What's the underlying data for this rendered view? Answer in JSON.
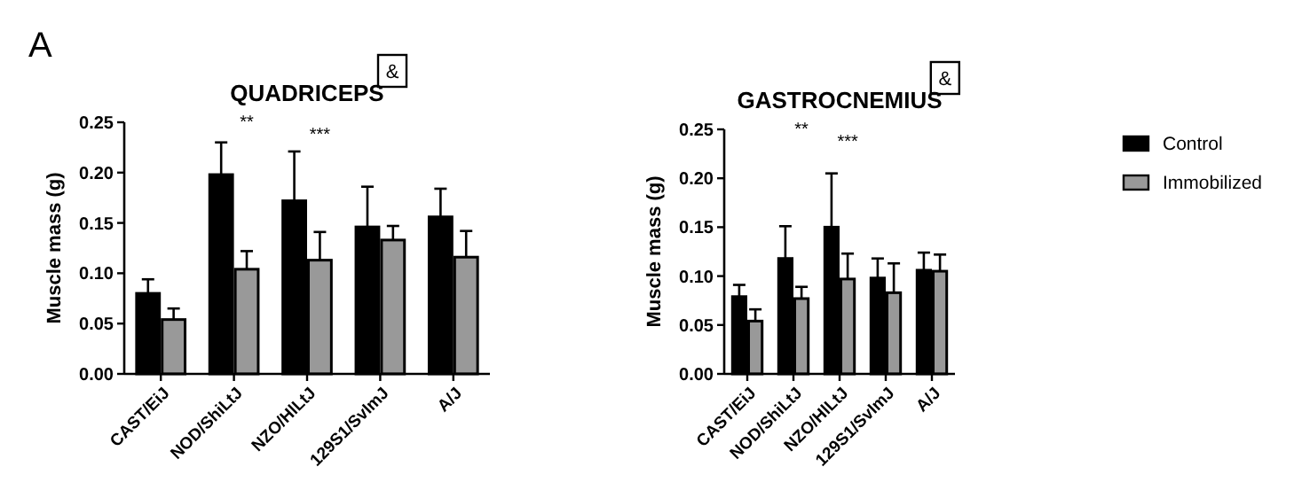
{
  "chart_data": [
    {
      "type": "bar",
      "title": "QUADRICEPS",
      "ylabel": "Muscle mass (g)",
      "categories": [
        "CAST/EiJ",
        "NOD/ShiLtJ",
        "NZO/HlLtJ",
        "129S1/SvImJ",
        "A/J"
      ],
      "series": [
        {
          "color": "#000000",
          "values": [
            0.08,
            0.198,
            0.172,
            0.146,
            0.156
          ],
          "errors": [
            [
              0.08,
              0.094
            ],
            [
              0.198,
              0.23
            ],
            [
              0.172,
              0.221
            ],
            [
              0.146,
              0.186
            ],
            [
              0.156,
              0.184
            ]
          ]
        },
        {
          "color": "#999999",
          "values": [
            0.054,
            0.104,
            0.113,
            0.133,
            0.116
          ],
          "errors": [
            [
              0.054,
              0.065
            ],
            [
              0.104,
              0.122
            ],
            [
              0.113,
              0.141
            ],
            [
              0.133,
              0.147
            ],
            [
              0.116,
              0.142
            ]
          ]
        }
      ],
      "ylim": [
        0,
        0.25
      ],
      "yticks": [
        {
          "value": 0,
          "label": "0.00"
        },
        0.05,
        {
          "value": 0.1,
          "label": "0.10"
        },
        0.15,
        {
          "value": 0.2,
          "label": "0.20"
        },
        0.25
      ],
      "grid": false,
      "annotations": [
        "A",
        "**",
        "***",
        "&"
      ]
    },
    {
      "type": "bar",
      "title": "GASTROCNEMIUS",
      "ylabel": "Muscle mass (g)",
      "categories": [
        "CAST/EiJ",
        "NOD/ShiLtJ",
        "NZO/HlLtJ",
        "129S1/SvImJ",
        "A/J"
      ],
      "series": [
        {
          "name": "Control",
          "color": "#000000",
          "values": [
            0.079,
            0.118,
            0.15,
            0.098,
            0.106
          ],
          "errors": [
            [
              0.079,
              0.091
            ],
            [
              0.118,
              0.151
            ],
            [
              0.15,
              0.205
            ],
            [
              0.098,
              0.118
            ],
            [
              0.106,
              0.124
            ]
          ]
        },
        {
          "name": "Immobilized",
          "color": "#999999",
          "values": [
            0.054,
            0.077,
            0.097,
            0.083,
            0.105
          ],
          "errors": [
            [
              0.054,
              0.066
            ],
            [
              0.077,
              0.089
            ],
            [
              0.097,
              0.123
            ],
            [
              0.083,
              0.113
            ],
            [
              0.105,
              0.122
            ]
          ]
        }
      ],
      "ylim": [
        0,
        0.25
      ],
      "yticks": [
        {
          "value": 0,
          "label": "0.00"
        },
        0.05,
        {
          "value": 0.1,
          "label": "0.10"
        },
        0.15,
        {
          "value": 0.2,
          "label": "0.20"
        },
        0.25
      ],
      "grid": false,
      "legend": "right",
      "annotations": [
        "**",
        "***",
        "&"
      ]
    }
  ]
}
